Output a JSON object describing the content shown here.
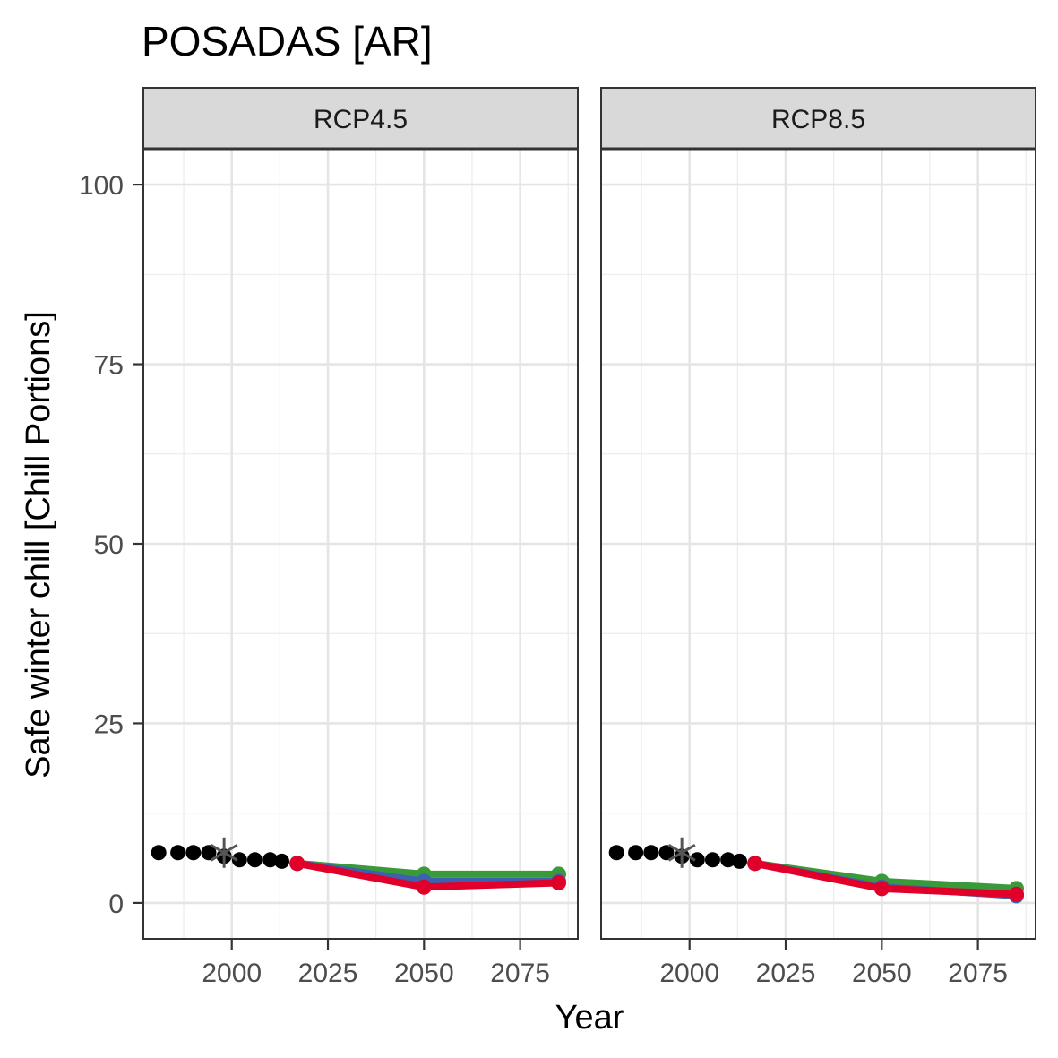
{
  "chart_data": {
    "type": "line",
    "title": "POSADAS [AR]",
    "xlabel": "Year",
    "ylabel": "Safe winter chill [Chill Portions]",
    "xlim": [
      1977,
      2090
    ],
    "ylim": [
      -5,
      105
    ],
    "x_ticks": [
      2000,
      2025,
      2050,
      2075
    ],
    "y_ticks": [
      0,
      25,
      50,
      75,
      100
    ],
    "grid": true,
    "facets": [
      {
        "label": "RCP4.5",
        "observed": {
          "x": [
            1981,
            1986,
            1990,
            1994,
            1998,
            2002,
            2006,
            2010,
            2013
          ],
          "y": [
            7,
            7,
            7,
            7,
            6.5,
            6,
            6,
            6,
            5.8
          ]
        },
        "historic_reference": {
          "x": 1998,
          "y": 7
        },
        "scenarios": [
          {
            "color": "#3a9a3a",
            "x": [
              2017,
              2050,
              2085
            ],
            "y": [
              5.5,
              4,
              4
            ]
          },
          {
            "color": "#3b62b0",
            "x": [
              2017,
              2050,
              2085
            ],
            "y": [
              5.5,
              3,
              3
            ]
          },
          {
            "color": "#e0002a",
            "x": [
              2017,
              2050,
              2085
            ],
            "y": [
              5.5,
              2.2,
              2.8
            ]
          }
        ]
      },
      {
        "label": "RCP8.5",
        "observed": {
          "x": [
            1981,
            1986,
            1990,
            1994,
            1998,
            2002,
            2006,
            2010,
            2013
          ],
          "y": [
            7,
            7,
            7,
            7,
            6.5,
            6,
            6,
            6,
            5.8
          ]
        },
        "historic_reference": {
          "x": 1998,
          "y": 7
        },
        "scenarios": [
          {
            "color": "#3a9a3a",
            "x": [
              2017,
              2050,
              2085
            ],
            "y": [
              5.5,
              3,
              2
            ]
          },
          {
            "color": "#3b62b0",
            "x": [
              2017,
              2050,
              2085
            ],
            "y": [
              5.5,
              2.2,
              1
            ]
          },
          {
            "color": "#e0002a",
            "x": [
              2017,
              2050,
              2085
            ],
            "y": [
              5.5,
              2,
              1.2
            ]
          }
        ]
      }
    ]
  }
}
